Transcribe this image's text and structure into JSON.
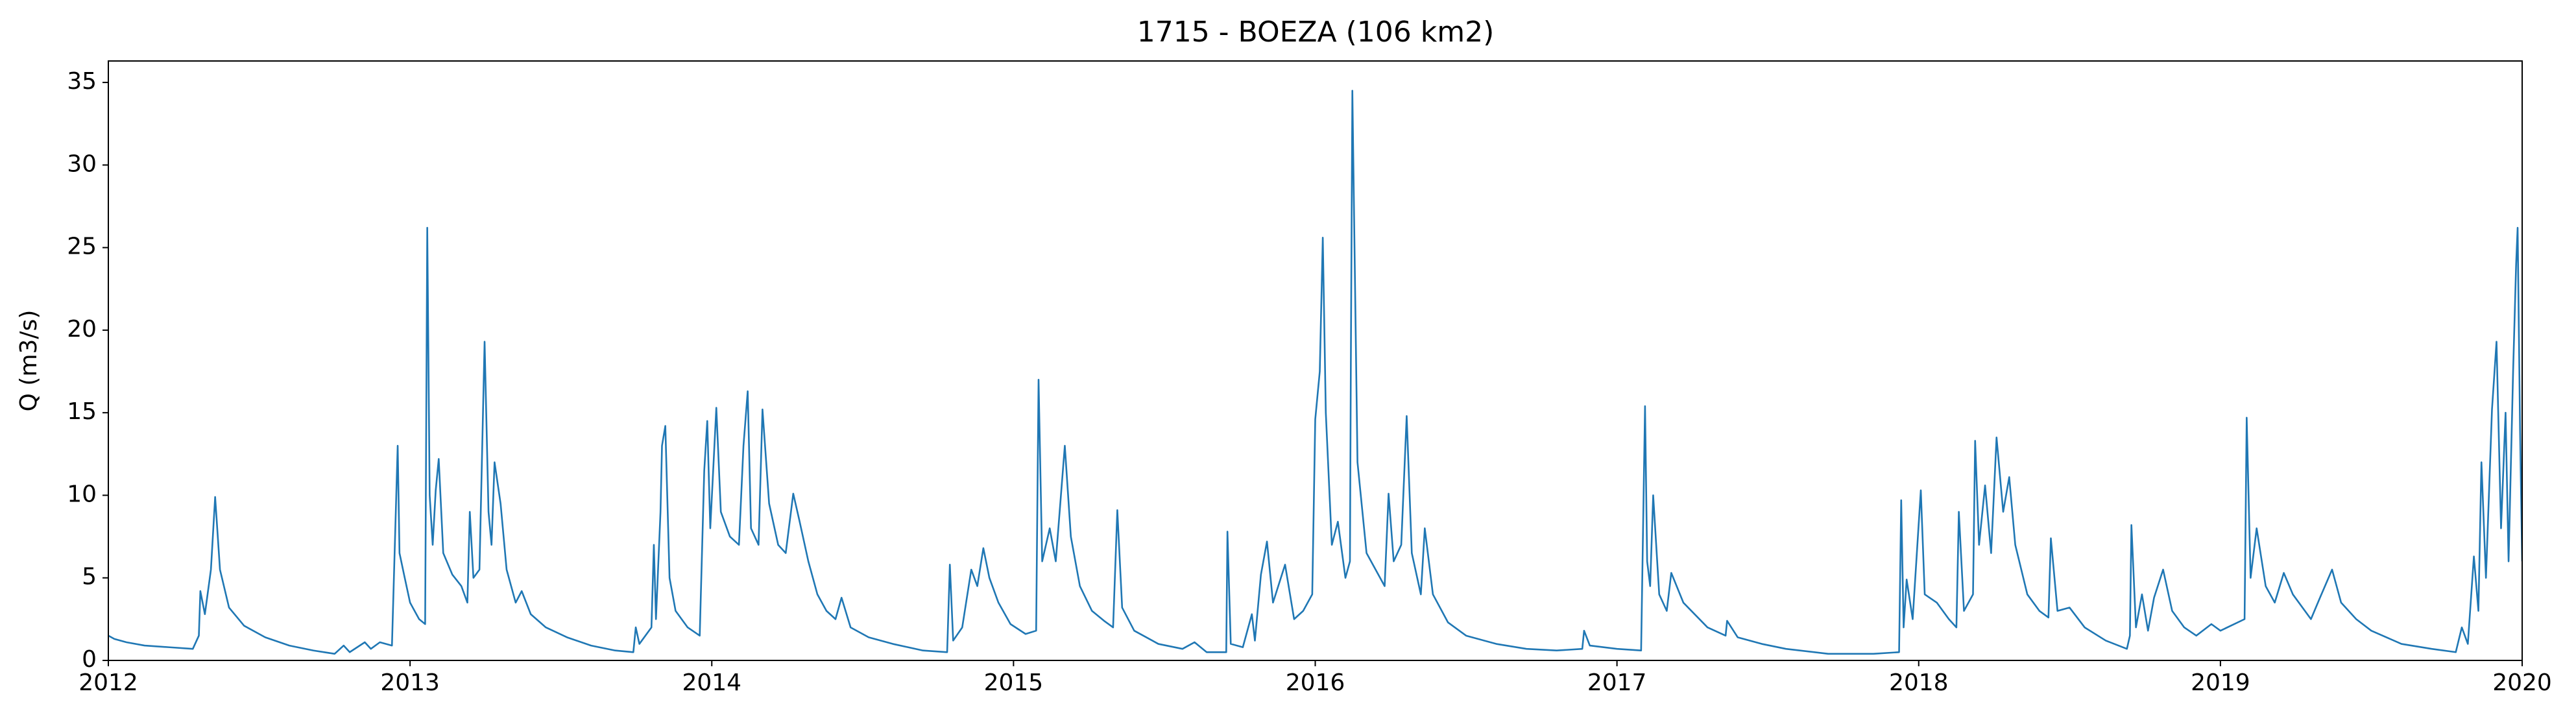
{
  "chart_data": {
    "type": "line",
    "title": "1715 - BOEZA (106 km2)",
    "y_label": "Q (m3/s)",
    "color": "#1f77b4",
    "grid": false,
    "xlim": [
      2012,
      2020
    ],
    "xticks": [
      2012,
      2013,
      2014,
      2015,
      2016,
      2017,
      2018,
      2019,
      2020
    ],
    "ylim": [
      0,
      36.3
    ],
    "yticks": [
      0,
      5,
      10,
      15,
      20,
      25,
      30,
      35
    ],
    "x": [
      2012.0,
      2012.02,
      2012.06,
      2012.12,
      2012.2,
      2012.28,
      2012.3,
      2012.305,
      2012.32,
      2012.34,
      2012.354,
      2012.37,
      2012.4,
      2012.45,
      2012.52,
      2012.6,
      2012.68,
      2012.75,
      2012.78,
      2012.8,
      2012.85,
      2012.87,
      2012.9,
      2012.94,
      2012.959,
      2012.965,
      2012.98,
      2013.0,
      2013.03,
      2013.05,
      2013.057,
      2013.065,
      2013.075,
      2013.085,
      2013.095,
      2013.11,
      2013.14,
      2013.17,
      2013.19,
      2013.198,
      2013.21,
      2013.23,
      2013.247,
      2013.26,
      2013.27,
      2013.28,
      2013.3,
      2013.32,
      2013.35,
      2013.37,
      2013.4,
      2013.45,
      2013.52,
      2013.6,
      2013.68,
      2013.74,
      2013.748,
      2013.76,
      2013.8,
      2013.808,
      2013.815,
      2013.83,
      2013.835,
      2013.846,
      2013.86,
      2013.88,
      2013.92,
      2013.96,
      2013.975,
      2013.985,
      2013.995,
      2014.015,
      2014.03,
      2014.06,
      2014.09,
      2014.105,
      2014.119,
      2014.13,
      2014.155,
      2014.168,
      2014.19,
      2014.22,
      2014.245,
      2014.27,
      2014.29,
      2014.32,
      2014.35,
      2014.38,
      2014.41,
      2014.43,
      2014.46,
      2014.52,
      2014.6,
      2014.7,
      2014.78,
      2014.789,
      2014.8,
      2014.83,
      2014.86,
      2014.88,
      2014.9,
      2014.92,
      2014.95,
      2014.99,
      2015.04,
      2015.075,
      2015.083,
      2015.095,
      2015.12,
      2015.14,
      2015.17,
      2015.19,
      2015.22,
      2015.26,
      2015.3,
      2015.33,
      2015.344,
      2015.36,
      2015.4,
      2015.48,
      2015.56,
      2015.6,
      2015.64,
      2015.705,
      2015.709,
      2015.72,
      2015.76,
      2015.79,
      2015.8,
      2015.82,
      2015.84,
      2015.86,
      2015.9,
      2015.93,
      2015.96,
      2015.99,
      2016.0,
      2016.015,
      2016.025,
      2016.035,
      2016.055,
      2016.075,
      2016.1,
      2016.115,
      2016.118,
      2016.123,
      2016.14,
      2016.17,
      2016.2,
      2016.23,
      2016.243,
      2016.26,
      2016.285,
      2016.303,
      2016.32,
      2016.35,
      2016.363,
      2016.39,
      2016.44,
      2016.5,
      2016.6,
      2016.7,
      2016.8,
      2016.885,
      2016.891,
      2016.91,
      2017.0,
      2017.08,
      2017.093,
      2017.1,
      2017.11,
      2017.12,
      2017.14,
      2017.165,
      2017.18,
      2017.22,
      2017.3,
      2017.36,
      2017.365,
      2017.4,
      2017.48,
      2017.56,
      2017.7,
      2017.85,
      2017.935,
      2017.942,
      2017.95,
      2017.96,
      2017.98,
      2018.007,
      2018.02,
      2018.06,
      2018.1,
      2018.125,
      2018.133,
      2018.15,
      2018.18,
      2018.187,
      2018.2,
      2018.22,
      2018.24,
      2018.258,
      2018.28,
      2018.3,
      2018.32,
      2018.36,
      2018.4,
      2018.43,
      2018.438,
      2018.46,
      2018.5,
      2018.55,
      2018.62,
      2018.69,
      2018.7,
      2018.705,
      2018.72,
      2018.74,
      2018.76,
      2018.78,
      2018.81,
      2018.84,
      2018.88,
      2018.92,
      2018.97,
      2019.0,
      2019.08,
      2019.087,
      2019.1,
      2019.12,
      2019.15,
      2019.18,
      2019.21,
      2019.24,
      2019.28,
      2019.3,
      2019.33,
      2019.37,
      2019.4,
      2019.45,
      2019.5,
      2019.6,
      2019.7,
      2019.78,
      2019.8,
      2019.82,
      2019.84,
      2019.855,
      2019.865,
      2019.88,
      2019.9,
      2019.915,
      2019.93,
      2019.945,
      2019.955,
      2019.97,
      2019.98,
      2019.985,
      2019.993,
      2020.0
    ],
    "values": [
      1.5,
      1.3,
      1.1,
      0.9,
      0.8,
      0.7,
      1.5,
      4.2,
      2.8,
      5.5,
      9.9,
      5.5,
      3.2,
      2.1,
      1.4,
      0.9,
      0.6,
      0.4,
      0.9,
      0.5,
      1.1,
      0.7,
      1.1,
      0.9,
      13,
      6.5,
      5.2,
      3.5,
      2.5,
      2.2,
      26.2,
      10,
      7,
      10.3,
      12.2,
      6.5,
      5.2,
      4.5,
      3.5,
      9,
      5,
      5.5,
      19.3,
      9,
      7,
      12,
      9.5,
      5.5,
      3.5,
      4.2,
      2.8,
      2,
      1.4,
      0.9,
      0.6,
      0.5,
      2,
      1,
      2,
      7,
      2.5,
      9,
      13,
      14.2,
      5,
      3,
      2,
      1.5,
      11.5,
      14.5,
      8,
      15.3,
      9,
      7.5,
      7,
      13,
      16.3,
      8,
      7,
      15.2,
      9.5,
      7,
      6.5,
      10.1,
      8.5,
      6,
      4,
      3,
      2.5,
      3.8,
      2,
      1.4,
      1,
      0.6,
      0.5,
      5.8,
      1.2,
      2,
      5.5,
      4.5,
      6.8,
      5,
      3.5,
      2.2,
      1.6,
      1.8,
      17,
      6,
      8,
      6,
      13,
      7.5,
      4.5,
      3,
      2.4,
      2,
      9.1,
      3.2,
      1.8,
      1,
      0.7,
      1.1,
      0.5,
      0.5,
      7.8,
      1,
      0.8,
      2.8,
      1.2,
      5.2,
      7.2,
      3.5,
      5.8,
      2.5,
      3,
      4,
      14.6,
      17.5,
      25.6,
      15,
      7,
      8.4,
      5,
      6,
      18,
      34.5,
      12,
      6.5,
      5.5,
      4.5,
      10.1,
      6,
      7,
      14.8,
      6.5,
      4,
      8,
      4,
      2.3,
      1.5,
      1,
      0.7,
      0.6,
      0.7,
      1.8,
      0.9,
      0.7,
      0.6,
      15.4,
      6,
      4.5,
      10,
      4,
      3,
      5.3,
      3.5,
      2,
      1.5,
      2.4,
      1.4,
      1,
      0.7,
      0.4,
      0.4,
      0.5,
      9.7,
      2,
      4.9,
      2.5,
      10.3,
      4,
      3.5,
      2.5,
      2,
      9,
      3,
      4,
      13.3,
      7,
      10.6,
      6.5,
      13.5,
      9,
      11.1,
      7,
      4,
      3,
      2.6,
      7.4,
      3,
      3.2,
      2,
      1.2,
      0.7,
      1.5,
      8.2,
      2,
      4,
      1.8,
      3.8,
      5.5,
      3,
      2,
      1.5,
      2.2,
      1.8,
      2.5,
      14.7,
      5,
      8,
      4.5,
      3.5,
      5.3,
      4,
      3,
      2.5,
      3.8,
      5.5,
      3.5,
      2.5,
      1.8,
      1,
      0.7,
      0.5,
      2,
      1,
      6.3,
      3,
      12,
      5,
      15.2,
      19.3,
      8,
      15,
      6,
      17.5,
      24,
      26.2,
      14,
      6
    ]
  }
}
